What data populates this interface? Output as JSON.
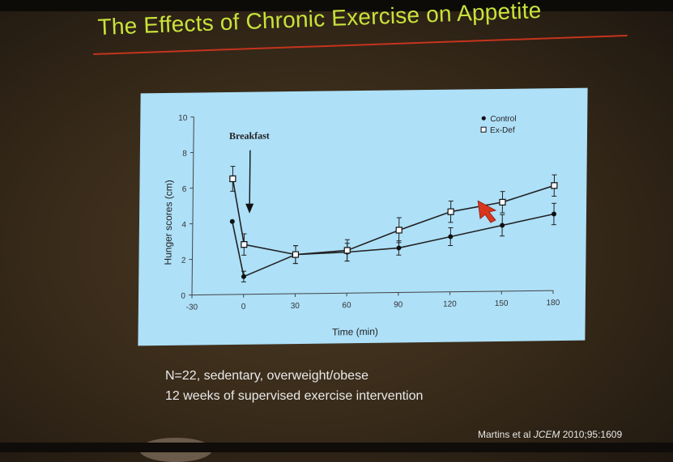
{
  "slide": {
    "title": "The Effects of Chronic Exercise on Appetite",
    "note_line1": "N=22, sedentary, overweight/obese",
    "note_line2": "12 weeks of supervised exercise intervention",
    "citation_authors": "Martins et al",
    "citation_journal": "JCEM",
    "citation_ref": "2010;95:1609"
  },
  "colors": {
    "title": "#c9e23a",
    "rule": "#c5341d",
    "panel": "#aee0f8",
    "cursor": "#d9361e"
  },
  "chart_data": {
    "type": "line",
    "title": "",
    "xlabel": "Time (min)",
    "ylabel": "Hunger scores (cm)",
    "xlim": [
      -30,
      180
    ],
    "ylim": [
      0,
      10
    ],
    "xticks": [
      -30,
      0,
      30,
      60,
      90,
      120,
      150,
      180
    ],
    "yticks": [
      0,
      2,
      4,
      6,
      8,
      10
    ],
    "annotation": "Breakfast",
    "annotation_x": 0,
    "series": [
      {
        "name": "Control",
        "marker": "filled-circle",
        "x": [
          -7,
          0,
          30,
          60,
          90,
          120,
          150,
          180
        ],
        "values": [
          4.1,
          1.0,
          2.2,
          2.3,
          2.5,
          3.1,
          3.7,
          4.3
        ],
        "errors": [
          0.0,
          0.3,
          0.5,
          0.5,
          0.4,
          0.5,
          0.6,
          0.6
        ]
      },
      {
        "name": "Ex-Def",
        "marker": "open-square",
        "x": [
          -7,
          0,
          30,
          60,
          90,
          120,
          150,
          180
        ],
        "values": [
          6.5,
          2.8,
          2.2,
          2.4,
          3.5,
          4.5,
          5.0,
          5.9
        ],
        "errors": [
          0.7,
          0.6,
          0.5,
          0.6,
          0.7,
          0.6,
          0.6,
          0.6
        ]
      }
    ]
  }
}
